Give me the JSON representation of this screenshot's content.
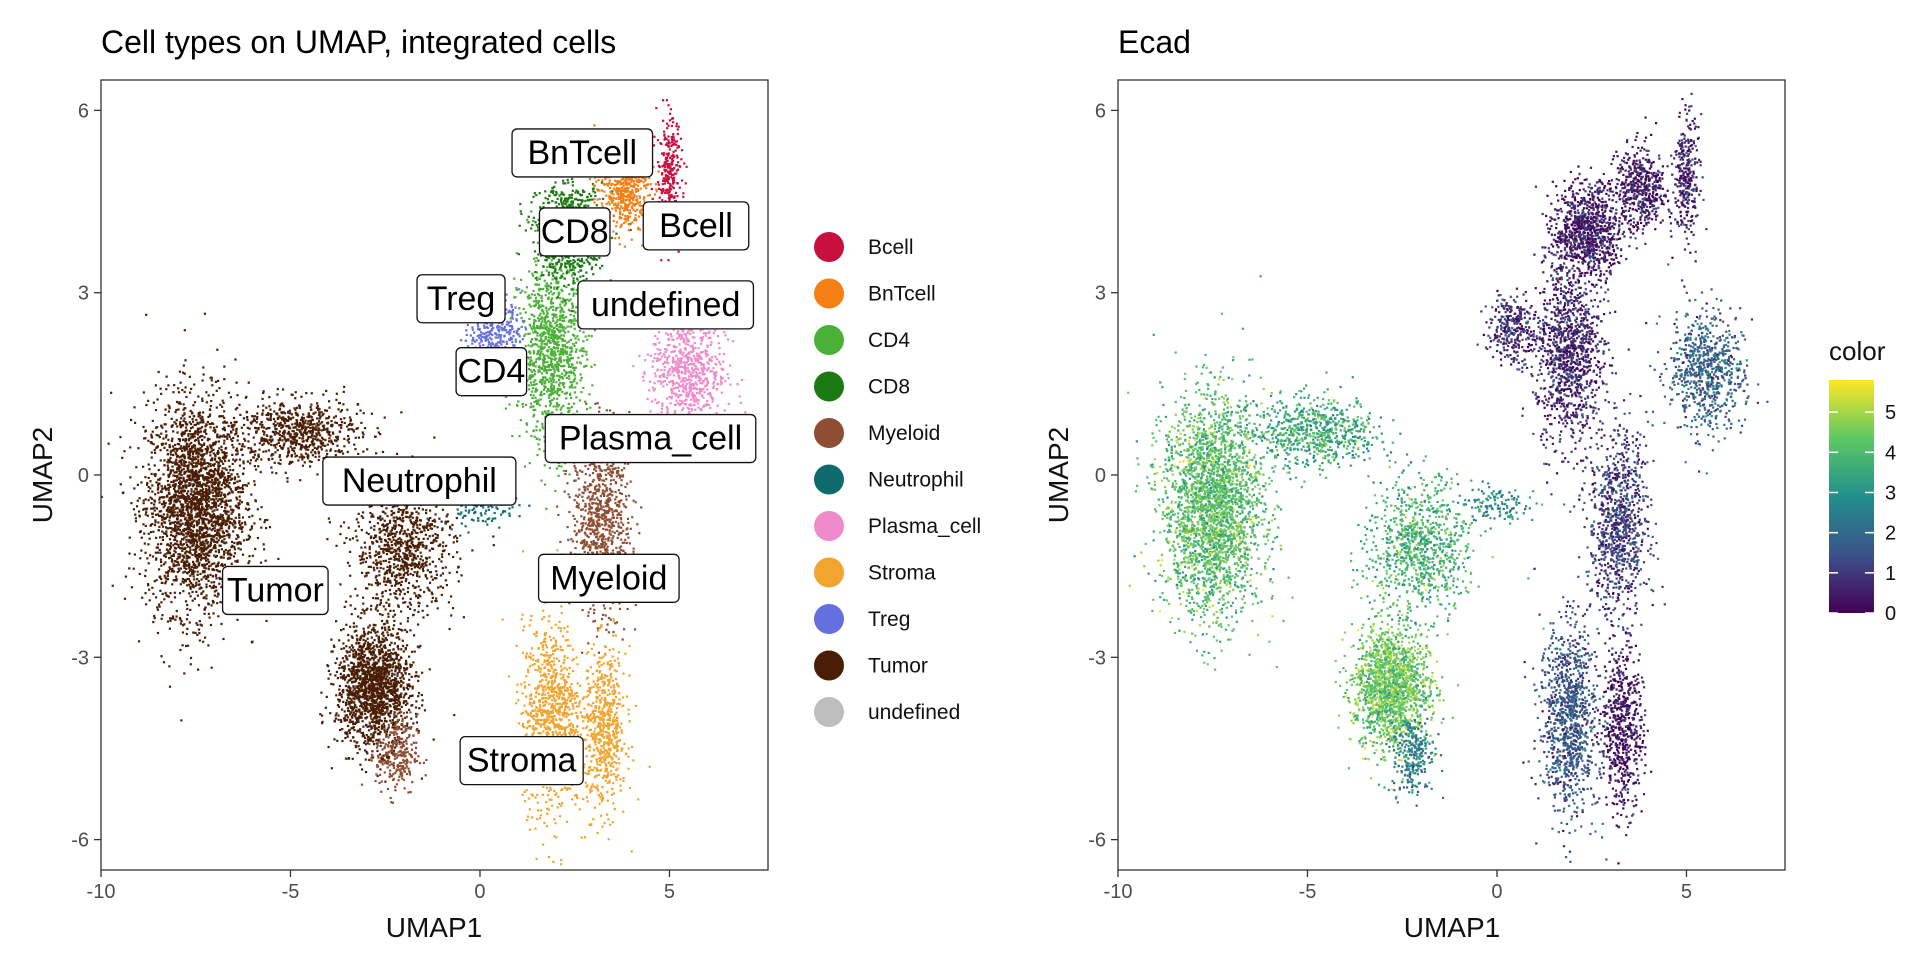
{
  "chart_data": [
    {
      "type": "scatter",
      "title": "Cell types on UMAP, integrated cells",
      "xlabel": "UMAP1",
      "ylabel": "UMAP2",
      "xlim": [
        -10,
        7.6
      ],
      "ylim": [
        -6.5,
        6.5
      ],
      "xticks": [
        -10,
        -5,
        0,
        5
      ],
      "yticks": [
        -6,
        -3,
        0,
        3,
        6
      ],
      "xtick_labels": [
        "-10",
        "-5",
        "0",
        "5"
      ],
      "ytick_labels": [
        "-6",
        "-3",
        "0",
        "3",
        "6"
      ],
      "grid": false,
      "legend_position": "right",
      "legend": [
        {
          "name": "Bcell",
          "color": "#C8103F"
        },
        {
          "name": "BnTcell",
          "color": "#F47F12"
        },
        {
          "name": "CD4",
          "color": "#4BB136"
        },
        {
          "name": "CD8",
          "color": "#1C7A12"
        },
        {
          "name": "Myeloid",
          "color": "#8E4E33"
        },
        {
          "name": "Neutrophil",
          "color": "#0F6B6B"
        },
        {
          "name": "Plasma_cell",
          "color": "#EF8ACB"
        },
        {
          "name": "Stroma",
          "color": "#F2A52E"
        },
        {
          "name": "Treg",
          "color": "#6470DE"
        },
        {
          "name": "Tumor",
          "color": "#4A1E05"
        },
        {
          "name": "undefined",
          "color": "#BDBDBD"
        }
      ],
      "clusters": [
        {
          "name": "Tumor",
          "x": -7.5,
          "y": -0.5,
          "rx": 1.2,
          "ry": 1.6,
          "n": 2600
        },
        {
          "name": "Tumor",
          "x": -2.8,
          "y": -3.5,
          "rx": 0.9,
          "ry": 0.9,
          "n": 1600
        },
        {
          "name": "Tumor",
          "x": -2.0,
          "y": -1.2,
          "rx": 1.2,
          "ry": 1.0,
          "n": 900
        },
        {
          "name": "Tumor",
          "x": -4.8,
          "y": 0.7,
          "rx": 1.5,
          "ry": 0.5,
          "n": 700
        },
        {
          "name": "Myeloid",
          "x": 3.2,
          "y": -0.8,
          "rx": 0.7,
          "ry": 1.4,
          "n": 900
        },
        {
          "name": "Myeloid",
          "x": -2.2,
          "y": -4.6,
          "rx": 0.5,
          "ry": 0.6,
          "n": 250
        },
        {
          "name": "Stroma",
          "x": 1.9,
          "y": -4.0,
          "rx": 0.7,
          "ry": 1.4,
          "n": 1000
        },
        {
          "name": "Stroma",
          "x": 3.3,
          "y": -4.2,
          "rx": 0.5,
          "ry": 1.2,
          "n": 600
        },
        {
          "name": "CD4",
          "x": 1.9,
          "y": 2.0,
          "rx": 0.8,
          "ry": 1.4,
          "n": 1100
        },
        {
          "name": "CD8",
          "x": 2.4,
          "y": 4.0,
          "rx": 0.8,
          "ry": 0.7,
          "n": 900
        },
        {
          "name": "BnTcell",
          "x": 3.8,
          "y": 4.7,
          "rx": 0.6,
          "ry": 0.6,
          "n": 500
        },
        {
          "name": "Bcell",
          "x": 5.0,
          "y": 4.9,
          "rx": 0.3,
          "ry": 0.9,
          "n": 300
        },
        {
          "name": "Treg",
          "x": 0.4,
          "y": 2.4,
          "rx": 0.6,
          "ry": 0.5,
          "n": 300
        },
        {
          "name": "Plasma_cell",
          "x": 5.5,
          "y": 1.7,
          "rx": 0.9,
          "ry": 0.9,
          "n": 700
        },
        {
          "name": "Neutrophil",
          "x": 0.0,
          "y": -0.5,
          "rx": 0.9,
          "ry": 0.3,
          "n": 120
        }
      ],
      "labels": [
        {
          "text": "BnTcell",
          "x": 2.7,
          "y": 5.3
        },
        {
          "text": "Bcell",
          "x": 5.7,
          "y": 4.1
        },
        {
          "text": "CD8",
          "x": 2.5,
          "y": 4.0
        },
        {
          "text": "Treg",
          "x": -0.5,
          "y": 2.9
        },
        {
          "text": "undefined",
          "x": 4.9,
          "y": 2.8
        },
        {
          "text": "CD4",
          "x": 0.3,
          "y": 1.7
        },
        {
          "text": "Plasma_cell",
          "x": 4.5,
          "y": 0.6
        },
        {
          "text": "Neutrophil",
          "x": -1.6,
          "y": -0.1
        },
        {
          "text": "Tumor",
          "x": -5.4,
          "y": -1.9
        },
        {
          "text": "Myeloid",
          "x": 3.4,
          "y": -1.7
        },
        {
          "text": "Stroma",
          "x": 1.1,
          "y": -4.7
        }
      ]
    },
    {
      "type": "scatter",
      "title": "Ecad",
      "xlabel": "UMAP1",
      "ylabel": "UMAP2",
      "xlim": [
        -10,
        7.6
      ],
      "ylim": [
        -6.5,
        6.5
      ],
      "xticks": [
        -10,
        -5,
        0,
        5
      ],
      "yticks": [
        -6,
        -3,
        0,
        3,
        6
      ],
      "xtick_labels": [
        "-10",
        "-5",
        "0",
        "5"
      ],
      "ytick_labels": [
        "-6",
        "-3",
        "0",
        "3",
        "6"
      ],
      "grid": false,
      "colorbar": {
        "title": "color",
        "min": 0,
        "max": 5.8,
        "ticks": [
          0,
          1,
          2,
          3,
          4,
          5
        ],
        "tick_labels": [
          "0",
          "1",
          "2",
          "3",
          "4",
          "5"
        ],
        "colors": [
          "#440154",
          "#3B528B",
          "#21908C",
          "#5DC863",
          "#FDE725"
        ]
      },
      "regions": [
        {
          "x": -7.5,
          "y": -0.5,
          "rx": 1.2,
          "ry": 1.6,
          "value": 4.1,
          "n": 2600
        },
        {
          "x": -2.8,
          "y": -3.5,
          "rx": 0.9,
          "ry": 0.9,
          "value": 4.4,
          "n": 1600
        },
        {
          "x": -2.0,
          "y": -1.2,
          "rx": 1.2,
          "ry": 1.0,
          "value": 3.8,
          "n": 900
        },
        {
          "x": -4.8,
          "y": 0.7,
          "rx": 1.5,
          "ry": 0.5,
          "value": 3.6,
          "n": 700
        },
        {
          "x": 3.2,
          "y": -0.8,
          "rx": 0.7,
          "ry": 1.4,
          "value": 1.0,
          "n": 900
        },
        {
          "x": -2.2,
          "y": -4.6,
          "rx": 0.5,
          "ry": 0.6,
          "value": 2.5,
          "n": 250
        },
        {
          "x": 1.9,
          "y": -4.0,
          "rx": 0.7,
          "ry": 1.4,
          "value": 1.5,
          "n": 1000
        },
        {
          "x": 3.3,
          "y": -4.2,
          "rx": 0.5,
          "ry": 1.2,
          "value": 0.3,
          "n": 600
        },
        {
          "x": 1.9,
          "y": 2.0,
          "rx": 0.8,
          "ry": 1.4,
          "value": 0.6,
          "n": 1100
        },
        {
          "x": 2.4,
          "y": 4.0,
          "rx": 0.8,
          "ry": 0.7,
          "value": 0.4,
          "n": 900
        },
        {
          "x": 3.8,
          "y": 4.7,
          "rx": 0.6,
          "ry": 0.6,
          "value": 0.4,
          "n": 500
        },
        {
          "x": 5.0,
          "y": 4.9,
          "rx": 0.3,
          "ry": 0.9,
          "value": 0.5,
          "n": 300
        },
        {
          "x": 0.4,
          "y": 2.4,
          "rx": 0.6,
          "ry": 0.5,
          "value": 0.8,
          "n": 300
        },
        {
          "x": 5.5,
          "y": 1.7,
          "rx": 0.9,
          "ry": 0.9,
          "value": 1.8,
          "n": 700
        },
        {
          "x": 0.0,
          "y": -0.5,
          "rx": 0.9,
          "ry": 0.3,
          "value": 2.8,
          "n": 120
        }
      ]
    }
  ]
}
